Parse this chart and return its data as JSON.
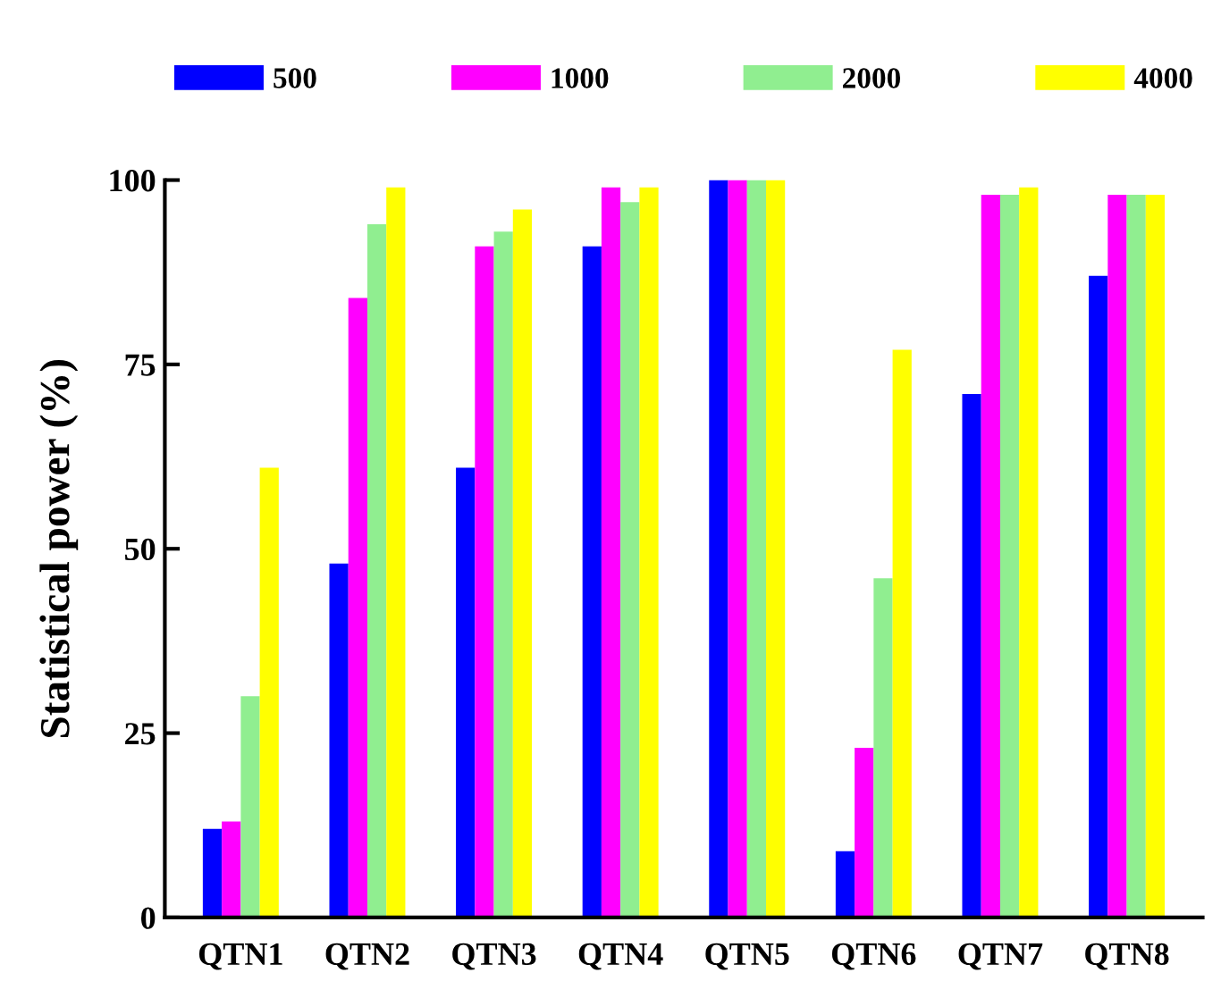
{
  "chart_data": {
    "type": "bar",
    "ylabel": "Statistical power (%)",
    "categories": [
      "QTN1",
      "QTN2",
      "QTN3",
      "QTN4",
      "QTN5",
      "QTN6",
      "QTN7",
      "QTN8"
    ],
    "series": [
      {
        "name": "500",
        "color": "#0000ff",
        "values": [
          12,
          48,
          61,
          91,
          100,
          9,
          71,
          87
        ]
      },
      {
        "name": "1000",
        "color": "#ff00ff",
        "values": [
          13,
          84,
          91,
          99,
          100,
          23,
          98,
          98
        ]
      },
      {
        "name": "2000",
        "color": "#90ee90",
        "values": [
          30,
          94,
          93,
          97,
          100,
          46,
          98,
          98
        ]
      },
      {
        "name": "4000",
        "color": "#ffff00",
        "values": [
          61,
          99,
          96,
          99,
          100,
          77,
          99,
          98
        ]
      }
    ],
    "ylim": [
      0,
      100
    ],
    "yticks": [
      0,
      25,
      50,
      75,
      100
    ],
    "grid": false,
    "legend": "top"
  }
}
